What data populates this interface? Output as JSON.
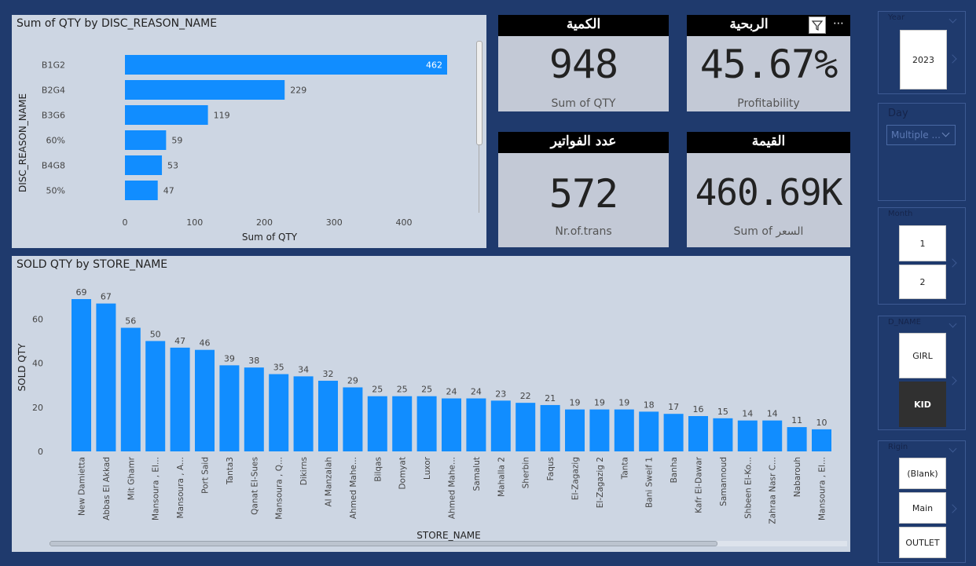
{
  "disc_chart": {
    "title": "Sum of QTY by DISC_REASON_NAME",
    "xlabel": "Sum of QTY",
    "ylabel": "DISC_REASON_NAME",
    "bar_color": "#118dff"
  },
  "kpis": {
    "qty": {
      "header": "الكمية",
      "value": "948",
      "label": "Sum of QTY"
    },
    "profit": {
      "header": "الربحية",
      "value": "45.67%",
      "label": "Profitability"
    },
    "trans": {
      "header": "عدد الفواتير",
      "value": "572",
      "label": "Nr.of.trans"
    },
    "amount": {
      "header": "القيمة",
      "value": "460.69K",
      "label": "Sum of السعر"
    }
  },
  "store_chart": {
    "title": "SOLD QTY by STORE_NAME",
    "xlabel": "STORE_NAME",
    "ylabel": "SOLD QTY",
    "bar_color": "#118dff"
  },
  "slicers": {
    "year": {
      "title": "Year",
      "value": "2023"
    },
    "day": {
      "title": "Day",
      "value": "Multiple ..."
    },
    "month": {
      "title": "Month",
      "values": [
        "1",
        "2"
      ]
    },
    "dname": {
      "title": "D_NAME",
      "values": [
        "GIRL",
        "KID"
      ],
      "selected": "KID"
    },
    "region": {
      "title": "Rigin",
      "values": [
        "(Blank)",
        "Main",
        "OUTLET"
      ]
    }
  },
  "chart_data": [
    {
      "type": "bar",
      "orientation": "horizontal",
      "title": "Sum of QTY by DISC_REASON_NAME",
      "xlabel": "Sum of QTY",
      "ylabel": "DISC_REASON_NAME",
      "categories": [
        "B1G2",
        "B2G4",
        "B3G6",
        "60%",
        "B4G8",
        "50%"
      ],
      "values": [
        462,
        229,
        119,
        59,
        53,
        47
      ],
      "xlim": [
        0,
        470
      ],
      "ticks": [
        0,
        100,
        200,
        300,
        400
      ],
      "grid": false
    },
    {
      "type": "bar",
      "title": "SOLD QTY by STORE_NAME",
      "xlabel": "STORE_NAME",
      "ylabel": "SOLD QTY",
      "categories": [
        "New Damietta",
        "Abbas El Akkad",
        "Mit Ghamr",
        "Mansoura , El...",
        "Mansoura , A...",
        "Port Said",
        "Tanta3",
        "Qanat El-Sues",
        "Mansoura , Q...",
        "Dikirns",
        "Al Manzalah",
        "Ahmed Mahe...",
        "Bilqas",
        "Domyat",
        "Luxor",
        "Ahmed Mahe...",
        "Samalut",
        "Mahalla 2",
        "Sherbin",
        "Faqus",
        "El-Zagazig",
        "El-Zagazig 2",
        "Tanta",
        "Bani Sweif 1",
        "Banha",
        "Kafr El-Dawar",
        "Samannoud",
        "Shbeen El-Ko...",
        "Zahraa Nasr C...",
        "Nabarouh",
        "Mansoura , El..."
      ],
      "values": [
        69,
        67,
        56,
        50,
        47,
        46,
        39,
        38,
        35,
        34,
        32,
        29,
        25,
        25,
        25,
        24,
        24,
        23,
        22,
        21,
        19,
        19,
        19,
        18,
        17,
        16,
        15,
        14,
        14,
        11,
        10
      ],
      "ylim": [
        0,
        72
      ],
      "ticks": [
        0,
        20,
        40,
        60
      ],
      "grid": false
    }
  ]
}
